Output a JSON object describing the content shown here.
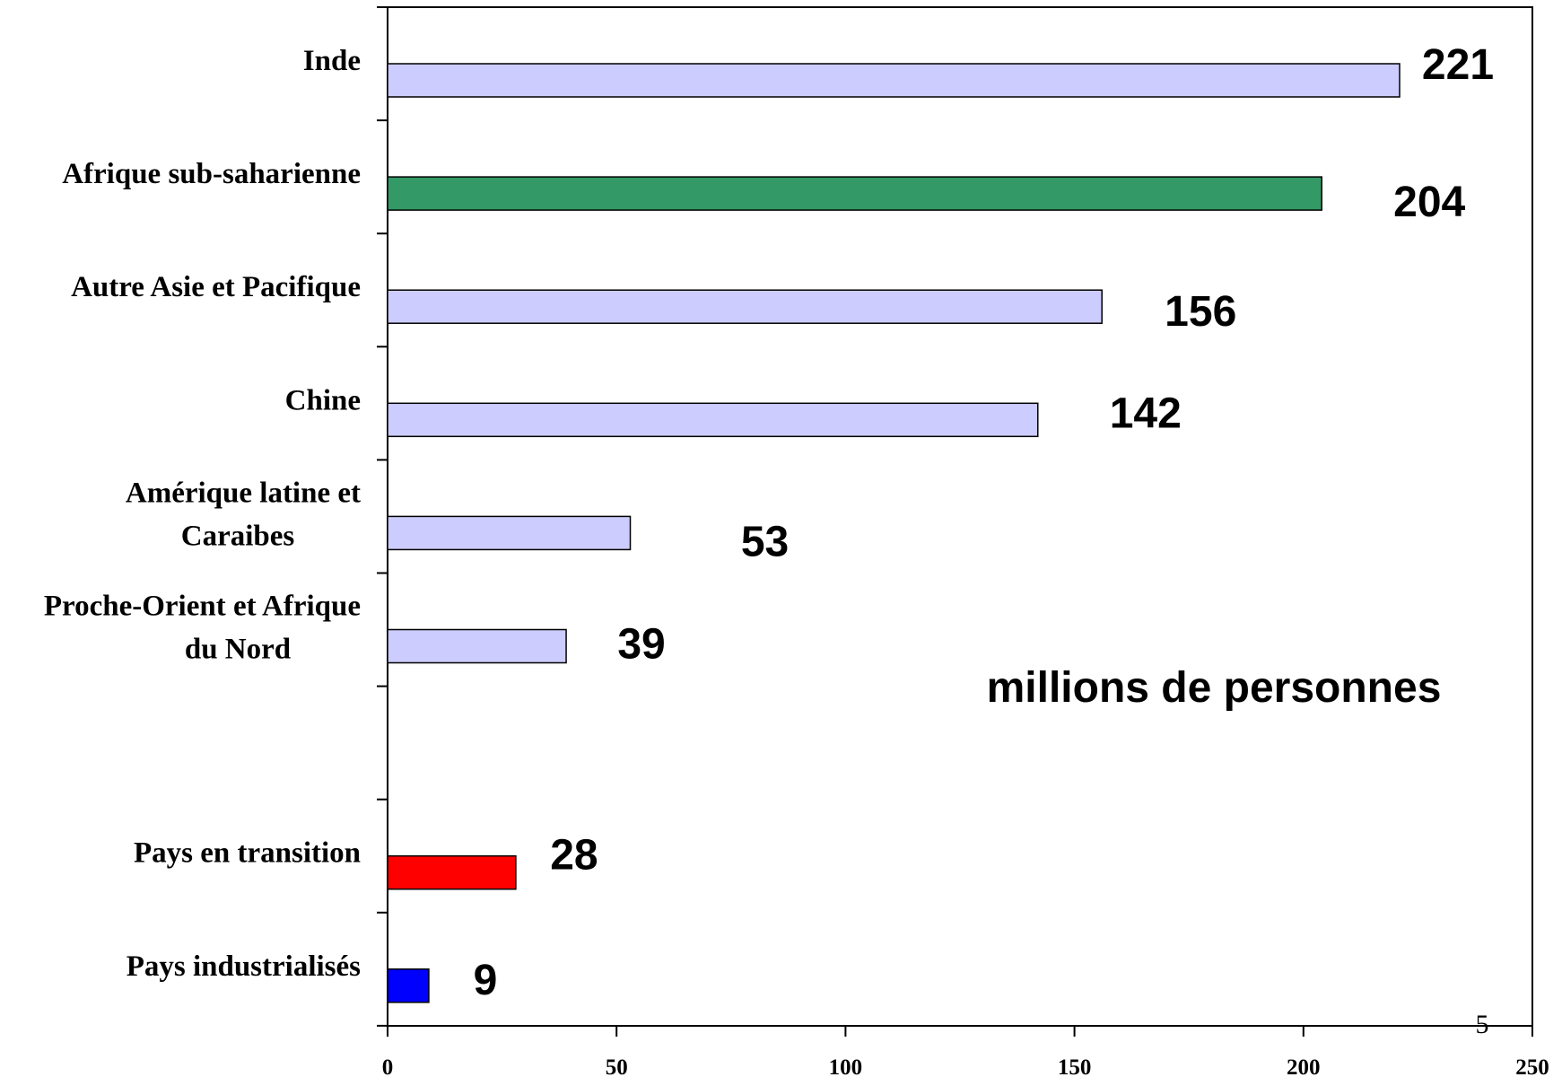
{
  "chart_data": {
    "type": "bar",
    "orientation": "horizontal",
    "categories": [
      [
        "Inde"
      ],
      [
        "Afrique sub-saharienne"
      ],
      [
        "Autre Asie et Pacifique"
      ],
      [
        "Chine"
      ],
      [
        "Amérique latine et",
        "Caraibes"
      ],
      [
        "Proche-Orient et Afrique",
        "du Nord"
      ],
      [],
      [
        "Pays en transition"
      ],
      [
        "Pays industrialisés"
      ]
    ],
    "values": [
      221,
      204,
      156,
      142,
      53,
      39,
      null,
      28,
      9
    ],
    "value_labels": [
      "221",
      "204",
      "156",
      "142",
      "53",
      "39",
      "",
      "28",
      "9"
    ],
    "colors": [
      "#ccccff",
      "#339966",
      "#ccccff",
      "#ccccff",
      "#ccccff",
      "#ccccff",
      "",
      "#ff0000",
      "#0000ff"
    ],
    "xlim": [
      0,
      250
    ],
    "x_ticks": [
      "0",
      "50",
      "100",
      "150",
      "200",
      "250"
    ],
    "unit_label": "millions de personnes",
    "page_number": "5",
    "grid": false,
    "legend": "none",
    "title": "",
    "xlabel": "",
    "ylabel": ""
  }
}
